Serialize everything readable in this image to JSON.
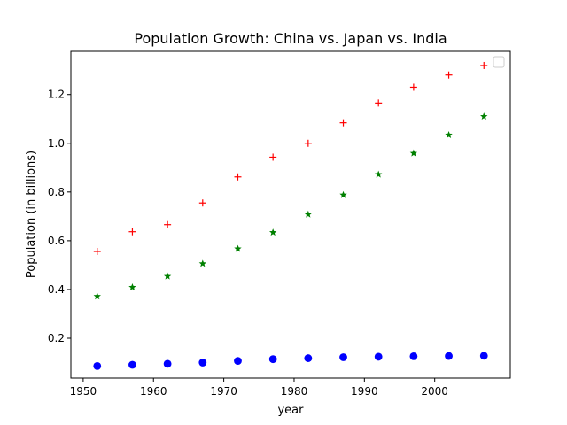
{
  "chart_data": {
    "type": "scatter",
    "title": "Population Growth: China vs. Japan vs. India",
    "xlabel": "year",
    "ylabel": "Population (in billions)",
    "xlim": [
      1948.25,
      2010.75
    ],
    "ylim": [
      0.0365,
      1.377
    ],
    "xticks": [
      1950,
      1960,
      1970,
      1980,
      1990,
      2000
    ],
    "yticks": [
      0.2,
      0.4,
      0.6,
      0.8,
      1.0,
      1.2
    ],
    "ytick_labels": [
      "0.2",
      "0.4",
      "0.6",
      "0.8",
      "1.0",
      "1.2"
    ],
    "grid": false,
    "legend": {
      "placement": "top-right",
      "entries": []
    },
    "x": [
      1952,
      1957,
      1962,
      1967,
      1972,
      1977,
      1982,
      1987,
      1992,
      1997,
      2002,
      2007
    ],
    "series": [
      {
        "color": "#ff0000",
        "marker": "plus",
        "values": [
          0.556,
          0.637,
          0.666,
          0.755,
          0.862,
          0.943,
          1.0,
          1.084,
          1.165,
          1.23,
          1.28,
          1.319
        ]
      },
      {
        "color": "#008000",
        "marker": "star",
        "values": [
          0.372,
          0.409,
          0.454,
          0.506,
          0.567,
          0.634,
          0.708,
          0.788,
          0.872,
          0.959,
          1.034,
          1.11
        ]
      },
      {
        "color": "#0000ff",
        "marker": "circle",
        "values": [
          0.086,
          0.091,
          0.095,
          0.1,
          0.107,
          0.114,
          0.118,
          0.122,
          0.124,
          0.126,
          0.127,
          0.128
        ]
      }
    ]
  }
}
